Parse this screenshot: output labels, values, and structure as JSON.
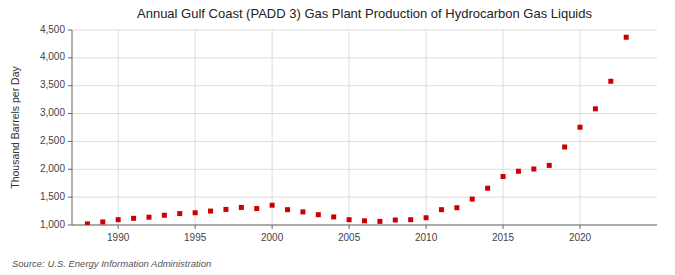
{
  "chart_data": {
    "type": "scatter",
    "title": "Annual Gulf Coast (PADD 3) Gas Plant Production of Hydrocarbon Gas Liquids",
    "ylabel": "Thousand Barrels per Day",
    "annotation": "Source: U.S. Energy Information Administration",
    "x": [
      1988,
      1989,
      1990,
      1991,
      1992,
      1993,
      1994,
      1995,
      1996,
      1997,
      1998,
      1999,
      2000,
      2001,
      2002,
      2003,
      2004,
      2005,
      2006,
      2007,
      2008,
      2009,
      2010,
      2011,
      2012,
      2013,
      2014,
      2015,
      2016,
      2017,
      2018,
      2019,
      2020,
      2021,
      2022,
      2023
    ],
    "values": [
      1020,
      1055,
      1095,
      1120,
      1140,
      1175,
      1205,
      1220,
      1250,
      1280,
      1315,
      1295,
      1355,
      1275,
      1235,
      1185,
      1145,
      1095,
      1075,
      1065,
      1090,
      1095,
      1130,
      1275,
      1310,
      1465,
      1660,
      1870,
      1965,
      2005,
      2070,
      2400,
      2755,
      3085,
      3580,
      4370
    ],
    "color": "#cc0000",
    "marker": "square",
    "xlim": [
      1987,
      2025
    ],
    "ylim": [
      1000,
      4500
    ],
    "xticks": [
      1990,
      1995,
      2000,
      2005,
      2010,
      2015,
      2020
    ],
    "yticks": [
      {
        "value": 1000,
        "label": "1,000"
      },
      {
        "value": 1500,
        "label": "1,500"
      },
      {
        "value": 2000,
        "label": "2,000"
      },
      {
        "value": 2500,
        "label": "2,500"
      },
      {
        "value": 3000,
        "label": "3,000"
      },
      {
        "value": 3500,
        "label": "3,500"
      },
      {
        "value": 4000,
        "label": "4,000"
      },
      {
        "value": 4500,
        "label": "4,500"
      }
    ],
    "grid": true
  }
}
